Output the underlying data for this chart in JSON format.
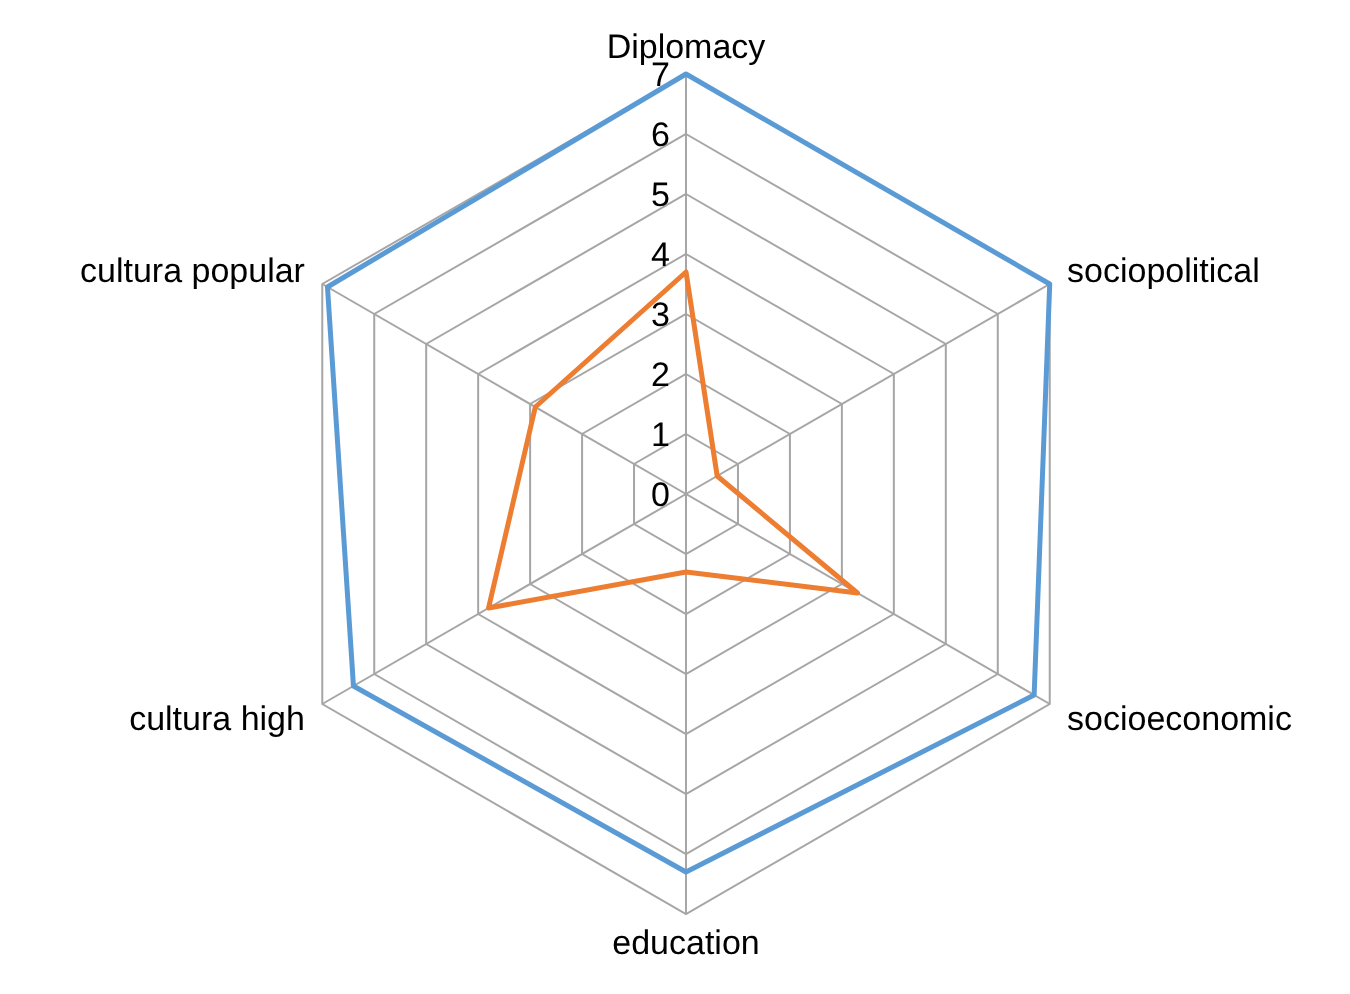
{
  "chart_data": {
    "type": "radar",
    "categories": [
      "Diplomacy",
      "sociopolitical",
      "socioeconomic",
      "education",
      "cultura high",
      "cultura popular"
    ],
    "ylim": [
      0,
      7
    ],
    "yticks": [
      0,
      1,
      2,
      3,
      4,
      5,
      6,
      7
    ],
    "grid": true,
    "series": [
      {
        "color": "#5b9bd5",
        "values": [
          7,
          7,
          6.7,
          6.3,
          6.4,
          6.9
        ]
      },
      {
        "color": "#ed7d31",
        "values": [
          3.7,
          0.6,
          3.3,
          1.3,
          3.8,
          2.9
        ]
      }
    ]
  }
}
